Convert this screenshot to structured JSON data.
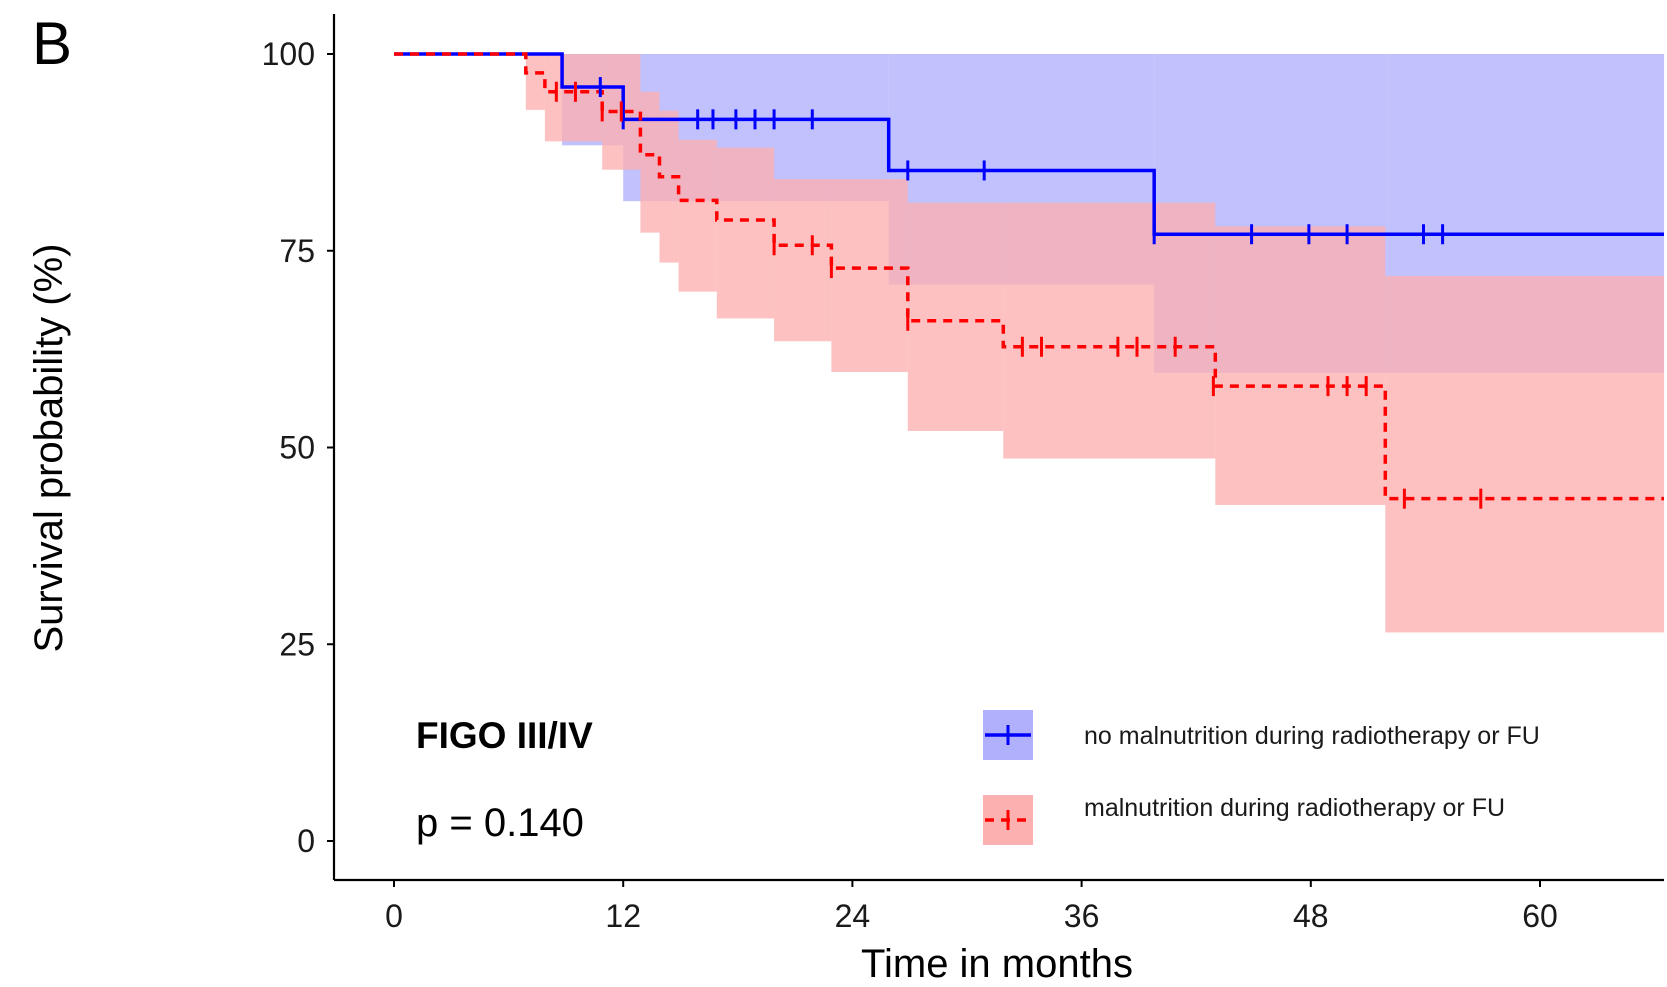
{
  "panel_label": "B",
  "annotations": {
    "group": "FIGO III/IV",
    "pvalue": "p = 0.140"
  },
  "chart_data": {
    "type": "line",
    "subtype": "kaplan-meier",
    "title": "",
    "xlabel": "Time in months",
    "ylabel": "Survival probability (%)",
    "xlim": [
      0,
      62.5
    ],
    "ylim": [
      0,
      100
    ],
    "x_ticks": [
      0,
      12,
      24,
      36,
      48,
      60
    ],
    "y_ticks": [
      0,
      25,
      50,
      75,
      100
    ],
    "grid": false,
    "legend_position": "bottom-right",
    "series": [
      {
        "name": "no malnutrition during radiotherapy or FU",
        "color": "#0000ff",
        "fill_color": "#b0b0fc",
        "line_style": "solid",
        "steps": [
          [
            0,
            100
          ],
          [
            8.8,
            95.8
          ],
          [
            12,
            91.7
          ],
          [
            25.9,
            85.2
          ],
          [
            39.8,
            77.1
          ]
        ],
        "ci": [
          [
            0,
            100,
            100
          ],
          [
            8.8,
            88.4,
            100
          ],
          [
            12,
            81.3,
            100
          ],
          [
            25.9,
            70.7,
            100
          ],
          [
            39.8,
            59.5,
            100
          ],
          [
            52,
            59.5,
            100
          ]
        ],
        "censored": [
          [
            10.8,
            95.8
          ],
          [
            12,
            91.7
          ],
          [
            15.9,
            91.7
          ],
          [
            16.7,
            91.7
          ],
          [
            17.9,
            91.7
          ],
          [
            18.9,
            91.7
          ],
          [
            19.9,
            91.7
          ],
          [
            21.9,
            91.7
          ],
          [
            26.9,
            85.2
          ],
          [
            30.9,
            85.2
          ],
          [
            39.8,
            77.1
          ],
          [
            44.9,
            77.1
          ],
          [
            47.9,
            77.1
          ],
          [
            49.9,
            77.1
          ],
          [
            53.9,
            77.1
          ],
          [
            54.9,
            77.1
          ]
        ]
      },
      {
        "name": "malnutrition during radiotherapy or FU",
        "color": "#ff0000",
        "fill_color": "#fcb0b0",
        "line_style": "dashed",
        "steps": [
          [
            0,
            100
          ],
          [
            6.9,
            97.6
          ],
          [
            7.9,
            95.2
          ],
          [
            10.9,
            92.7
          ],
          [
            12.9,
            87.2
          ],
          [
            13.9,
            84.4
          ],
          [
            14.9,
            81.4
          ],
          [
            16.9,
            78.9
          ],
          [
            19.9,
            75.7
          ],
          [
            22.9,
            72.8
          ],
          [
            26.9,
            66.1
          ],
          [
            31.9,
            62.8
          ],
          [
            43,
            57.8
          ],
          [
            51.9,
            43.5
          ]
        ],
        "ci": [
          [
            0,
            100,
            100
          ],
          [
            6.9,
            92.9,
            100
          ],
          [
            7.9,
            88.9,
            100
          ],
          [
            10.9,
            85.3,
            100
          ],
          [
            12.9,
            77.3,
            95.2
          ],
          [
            13.9,
            73.5,
            92.8
          ],
          [
            14.9,
            69.8,
            89.1
          ],
          [
            16.9,
            66.4,
            88.1
          ],
          [
            19.9,
            63.5,
            84.1
          ],
          [
            22.9,
            59.6,
            84.1
          ],
          [
            26.9,
            52.1,
            81.1
          ],
          [
            31.9,
            48.6,
            81.1
          ],
          [
            43,
            42.7,
            78.1
          ],
          [
            51.9,
            26.5,
            71.8
          ]
        ],
        "censored": [
          [
            8.5,
            95.2
          ],
          [
            9.5,
            95.2
          ],
          [
            10.9,
            92.7
          ],
          [
            11.9,
            92.7
          ],
          [
            19.9,
            75.7
          ],
          [
            21.9,
            75.7
          ],
          [
            22.9,
            72.8
          ],
          [
            26.9,
            66.1
          ],
          [
            32.9,
            62.8
          ],
          [
            33.9,
            62.8
          ],
          [
            37.9,
            62.8
          ],
          [
            38.9,
            62.8
          ],
          [
            40.9,
            62.8
          ],
          [
            42.9,
            57.8
          ],
          [
            48.9,
            57.8
          ],
          [
            49.9,
            57.8
          ],
          [
            50.9,
            57.8
          ],
          [
            52.9,
            43.5
          ],
          [
            56.9,
            43.5
          ]
        ]
      }
    ]
  }
}
